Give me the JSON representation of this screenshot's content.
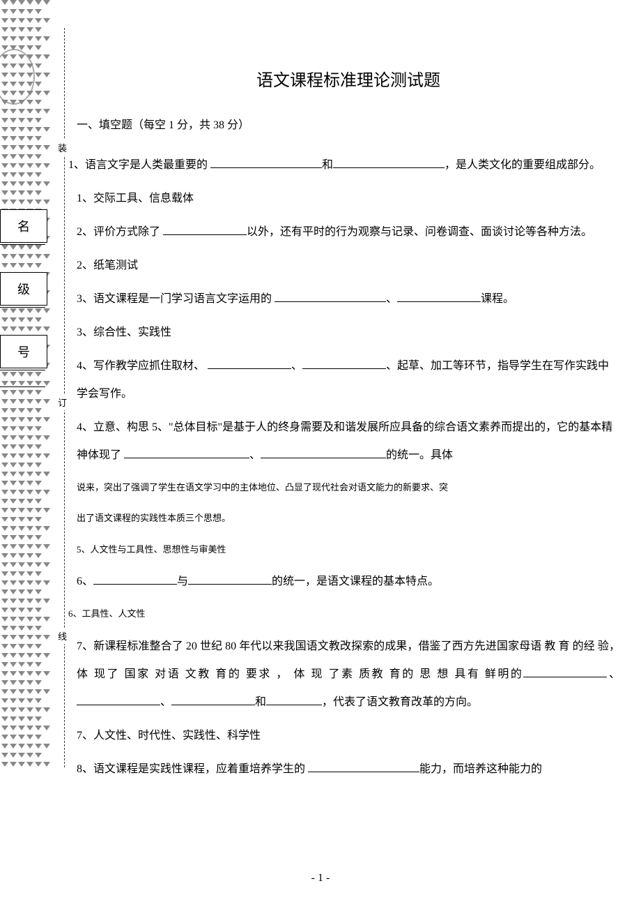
{
  "sidebar": {
    "name_label": "名",
    "level_label": "级",
    "number_label": "号",
    "bind_zhuang": "装",
    "bind_ding": "订",
    "bind_xian": "线"
  },
  "title": "语文课程标准理论测试题",
  "section_header": "一、填空题（每空 1 分，共 38 分）",
  "questions": {
    "q1": {
      "prefix": "1、语言文字是人类最重要的 ",
      "mid": "和",
      "suffix": "，是人类文化的重要组成部分。"
    },
    "a1": "1、交际工具、信息载体",
    "q2": {
      "prefix": "2、评价方式除了 ",
      "suffix": "以外，还有平时的行为观察与记录、问卷调查、面谈讨论等各种方法。"
    },
    "a2": "2、纸笔测试",
    "q3": {
      "prefix": "3、语文课程是一门学习语言文字运用的 ",
      "mid": "、",
      "suffix": "课程。"
    },
    "a3": "3、综合性、实践性",
    "q4": {
      "prefix": "4、写作教学应抓住取材、 ",
      "mid1": "、",
      "mid2": "、起草、加工等环节，指导学生在写作实践中学会写作。"
    },
    "a4": "4、立意、构思 5、\"总体目标\"是基于人的终身需要及和谐发展所应具备的综合语文素养而提出的，它的基本精神体现了 ",
    "a4_mid": "、",
    "a4_suffix": "的统一。具体",
    "a4_line2": "说来，突出了强调了学生在语文学习中的主体地位、凸显了现代社会对语文能力的新要求、突",
    "a4_line3": "出了语文课程的实践性本质三个思想。",
    "a5": "5、人文性与工具性、思想性与审美性",
    "q6": {
      "prefix": "6、",
      "mid": "与",
      "suffix": "的统一，是语文课程的基本特点。"
    },
    "a6": "6、工具性、人文性",
    "q7": {
      "prefix": "7、新课程标准整合了 20 世纪 80 年代以来我国语文教改探索的成果，借鉴了西方先进国家母语 教 育 的经 验， 体 现了 国家 对语 文教 育的 要求 ， 体 现 了素 质教 育的 思 想 具有 鲜明的",
      "mid1": "、",
      "mid2": "、",
      "mid3": "和",
      "suffix": "，代表了语文教育改革的方向。"
    },
    "a7": "7、人文性、时代性、实践性、科学性",
    "q8": {
      "prefix": "8、语文课程是实践性课程，应着重培养学生的 ",
      "suffix": "能力，而培养这种能力的"
    }
  },
  "page_number": "- 1 -"
}
